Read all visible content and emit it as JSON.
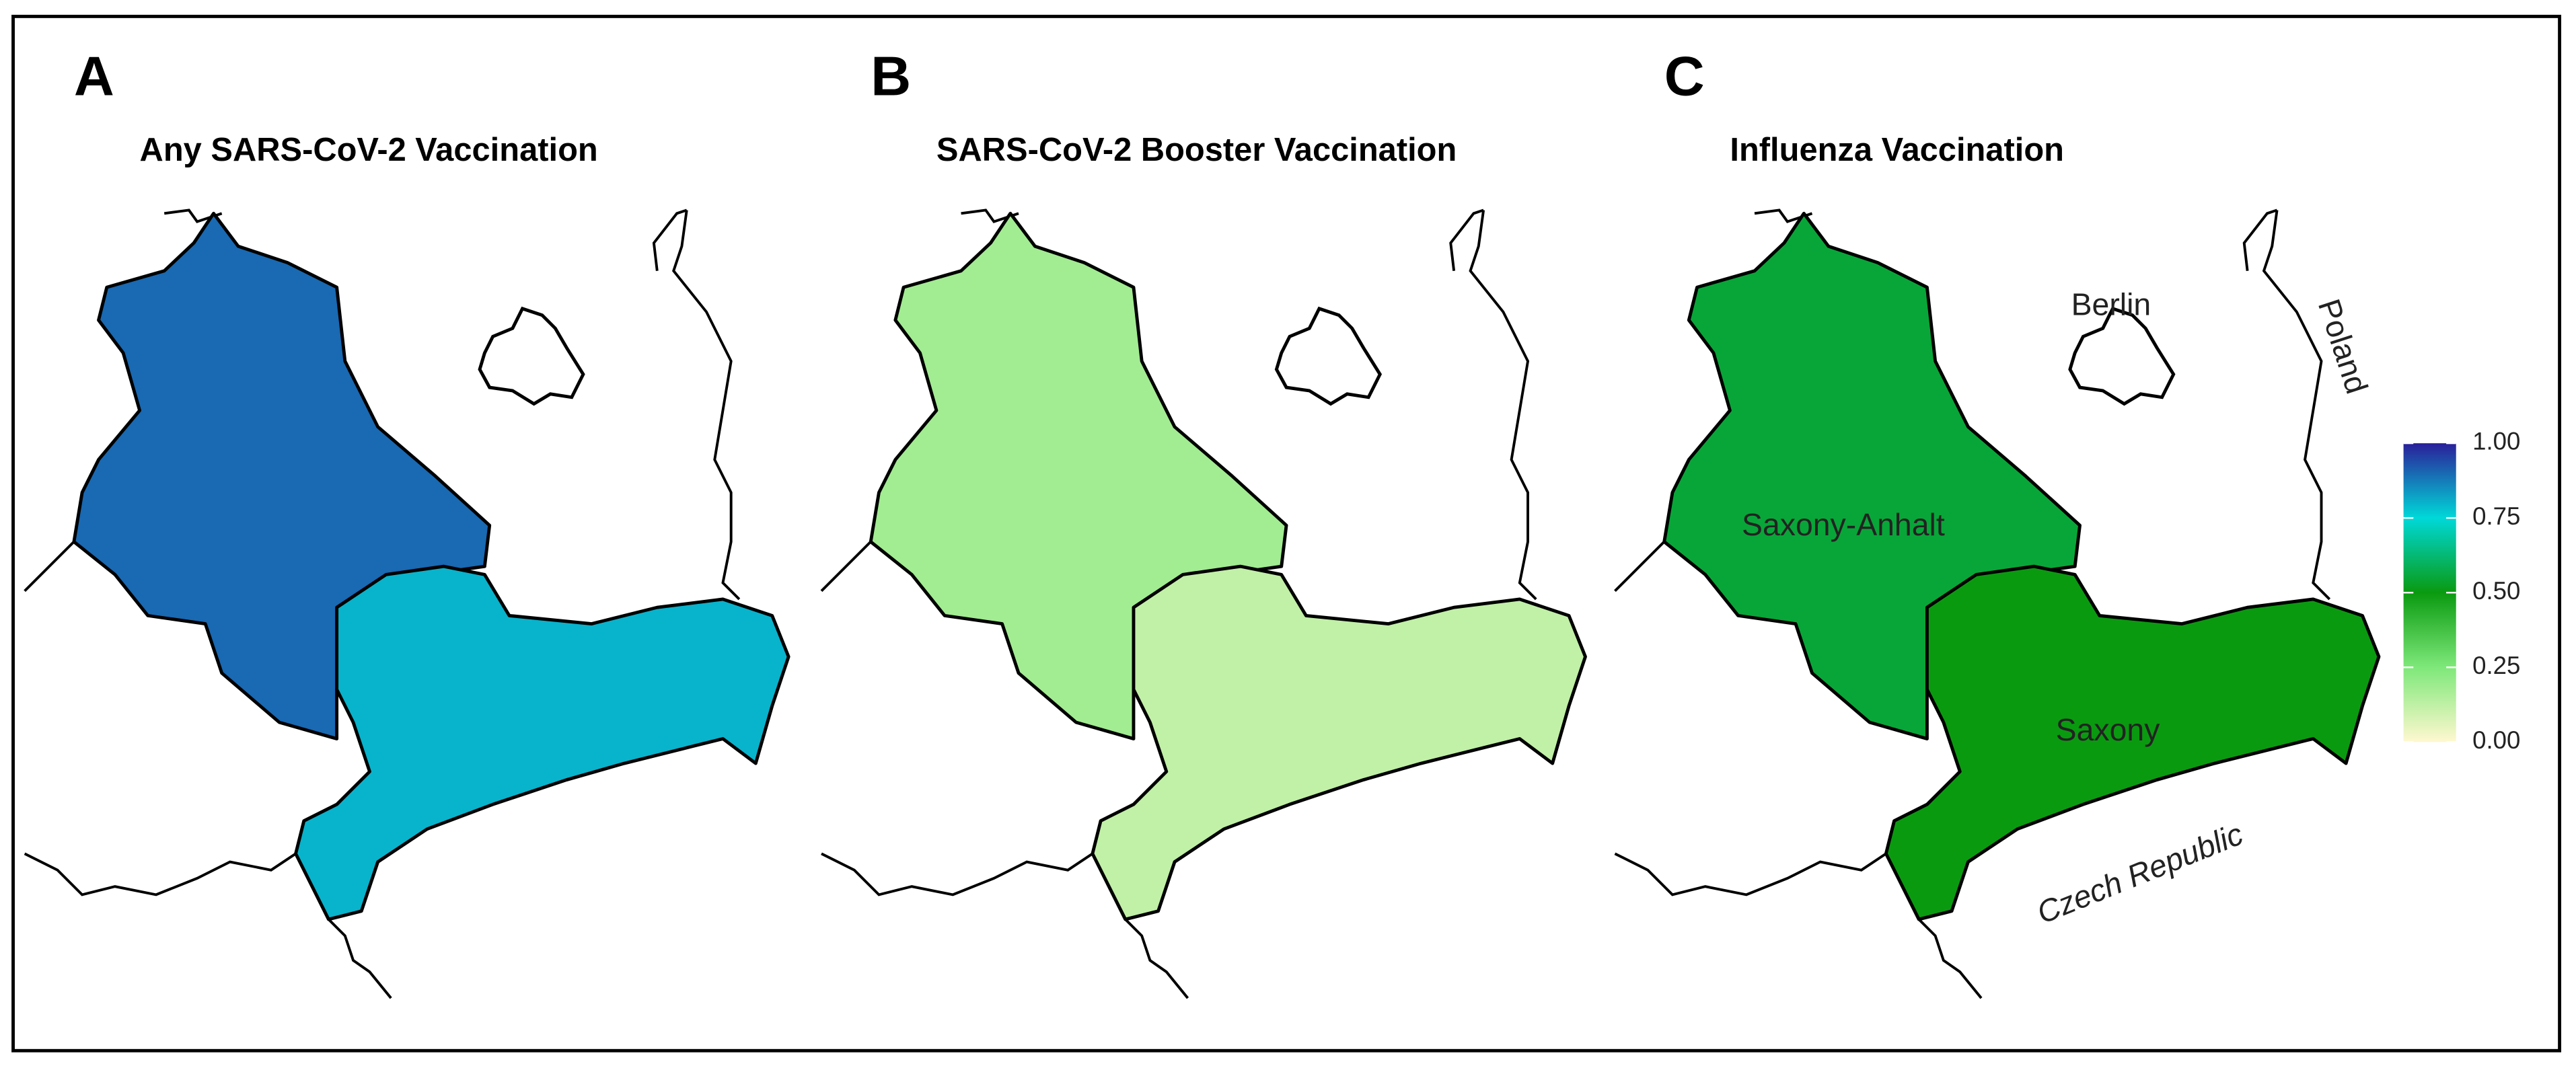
{
  "panels": [
    {
      "letter": "A",
      "title": "Any SARS-CoV-2 Vaccination",
      "values": [
        0.9,
        0.8
      ]
    },
    {
      "letter": "B",
      "title": "SARS-CoV-2 Booster Vaccination",
      "values": [
        0.18,
        0.12
      ]
    },
    {
      "letter": "C",
      "title": "Influenza Vaccination",
      "values": [
        0.55,
        0.5
      ]
    }
  ],
  "labels": {
    "berlin": "Berlin",
    "poland": "Poland",
    "saxony_anhalt": "Saxony-Anhalt",
    "saxony": "Saxony",
    "czech": "Czech Republic"
  },
  "colorbar": {
    "range": [
      0,
      1
    ],
    "colors": [
      "#fff8d0",
      "#7ee87a",
      "#0a9a10",
      "#00d8d8",
      "#2a1f9a"
    ],
    "ticks": [
      {
        "value": 1,
        "label": "1.00"
      },
      {
        "value": 0.75,
        "label": "0.75"
      },
      {
        "value": 0.5,
        "label": "0.50"
      },
      {
        "value": 0.25,
        "label": "0.25"
      },
      {
        "value": 0,
        "label": "0.00"
      }
    ]
  }
}
